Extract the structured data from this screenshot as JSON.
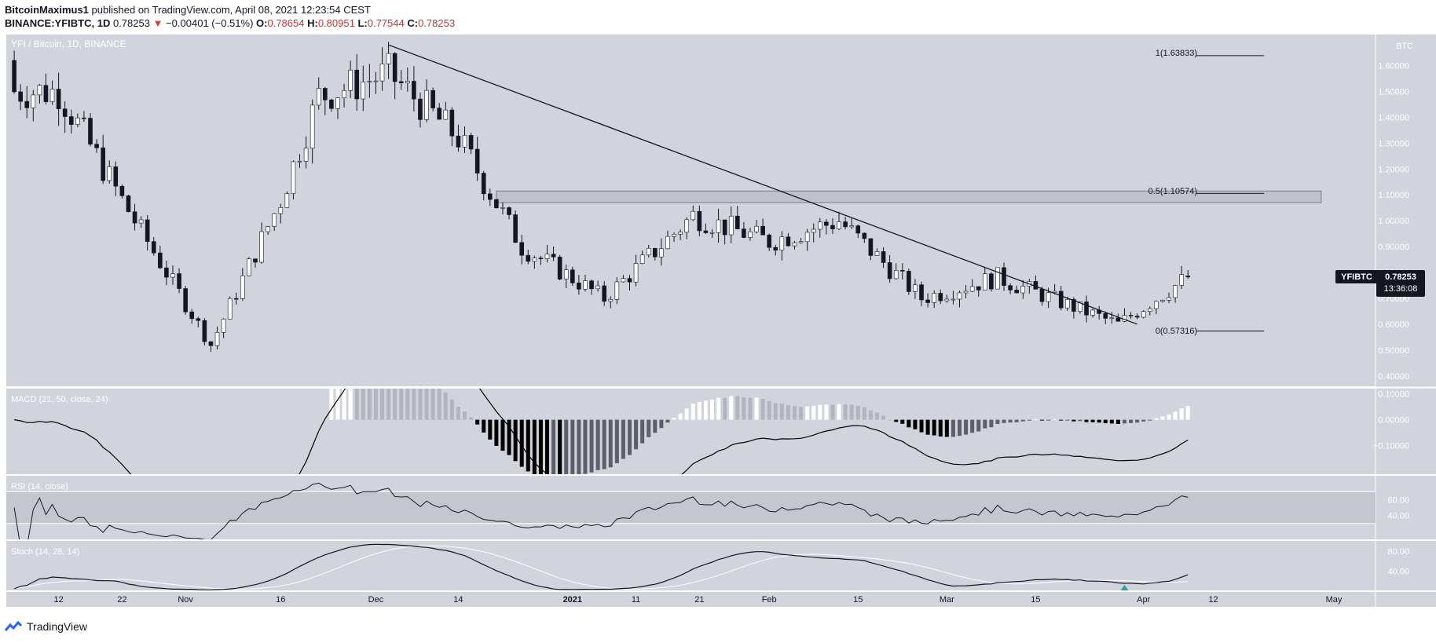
{
  "header": {
    "author": "BitcoinMaximus1",
    "published_text": "published on TradingView.com, April 08, 2021 12:23:54 CEST",
    "symbol": "BINANCE:YFIBTC, 1D",
    "last": "0.78253",
    "arrow": "▼",
    "change": "−0.00401 (−0.51%)",
    "o_label": "O:",
    "o": "0.78654",
    "h_label": "H:",
    "h": "0.80951",
    "l_label": "L:",
    "l": "0.77544",
    "c_label": "C:",
    "c": "0.78253"
  },
  "chart_title": "YFI / Bitcoin, 1D, BINANCE",
  "price_unit": "BTC",
  "price_ticks": [
    "1.60000",
    "1.50000",
    "1.40000",
    "1.30000",
    "1.20000",
    "1.10000",
    "1.00000",
    "0.90000",
    "0.80000",
    "0.70000",
    "0.60000",
    "0.50000",
    "0.40000"
  ],
  "price_tag": {
    "symbol": "YFIBTC",
    "value": "0.78253",
    "countdown": "13:36:08"
  },
  "fib_labels": {
    "top": "1(1.63833)",
    "mid": "0.5(1.10574)",
    "bottom": "0(0.57316)"
  },
  "macd": {
    "label": "MACD (21, 50, close, 24)",
    "ticks": [
      "0.10000",
      "0.00000",
      "−0.10000"
    ]
  },
  "rsi": {
    "label": "RSI (14, close)",
    "ticks": [
      "60.00",
      "40.00"
    ]
  },
  "stoch": {
    "label": "Stoch (14, 28, 14)",
    "ticks": [
      "80.00",
      "40.00"
    ]
  },
  "x_ticks": [
    "12",
    "22",
    "Nov",
    "16",
    "Dec",
    "14",
    "2021",
    "11",
    "21",
    "Feb",
    "15",
    "Mar",
    "15",
    "Apr",
    "12",
    "May"
  ],
  "footer": {
    "brand": "TradingView"
  },
  "colors": {
    "pane_bg": "#d1d4dc",
    "up": "#ffffff",
    "down": "#131722",
    "macd_line": "#000000",
    "signal_line": "#ffffff"
  },
  "chart_data": {
    "type": "candlestick",
    "symbol": "YFIBTC",
    "timeframe": "1D",
    "x_range": [
      "2020-10-04",
      "2021-05-01"
    ],
    "price_range": [
      0.36,
      1.72
    ],
    "price_series_monthly_anchors": [
      {
        "date": "2020-10-12",
        "close": 1.5
      },
      {
        "date": "2020-10-22",
        "close": 1.08
      },
      {
        "date": "2020-11-05",
        "close": 0.52
      },
      {
        "date": "2020-11-16",
        "close": 1.08
      },
      {
        "date": "2020-11-22",
        "close": 1.48
      },
      {
        "date": "2020-12-03",
        "close": 1.57
      },
      {
        "date": "2020-12-14",
        "close": 1.32
      },
      {
        "date": "2020-12-24",
        "close": 0.9
      },
      {
        "date": "2021-01-06",
        "close": 0.7
      },
      {
        "date": "2021-01-20",
        "close": 1.02
      },
      {
        "date": "2021-02-01",
        "close": 0.92
      },
      {
        "date": "2021-02-12",
        "close": 1.0
      },
      {
        "date": "2021-02-25",
        "close": 0.7
      },
      {
        "date": "2021-03-09",
        "close": 0.78
      },
      {
        "date": "2021-03-28",
        "close": 0.6
      },
      {
        "date": "2021-04-08",
        "close": 0.78253
      }
    ],
    "fib_levels": [
      {
        "ratio": 1,
        "value": 1.63833
      },
      {
        "ratio": 0.5,
        "value": 1.10574
      },
      {
        "ratio": 0,
        "value": 0.57316
      }
    ],
    "resistance_zone": [
      1.07,
      1.115
    ],
    "descending_trendline": [
      {
        "date": "2020-12-03",
        "value": 1.68
      },
      {
        "date": "2021-03-31",
        "value": 0.6
      }
    ],
    "macd": {
      "params": [
        21,
        50,
        24
      ],
      "y_range": [
        -0.21,
        0.12
      ]
    },
    "rsi": {
      "period": 14,
      "levels": [
        70,
        30
      ],
      "y_range": [
        10,
        90
      ]
    },
    "stoch": {
      "params": [
        14,
        28,
        14
      ],
      "y_range": [
        0,
        100
      ]
    }
  }
}
